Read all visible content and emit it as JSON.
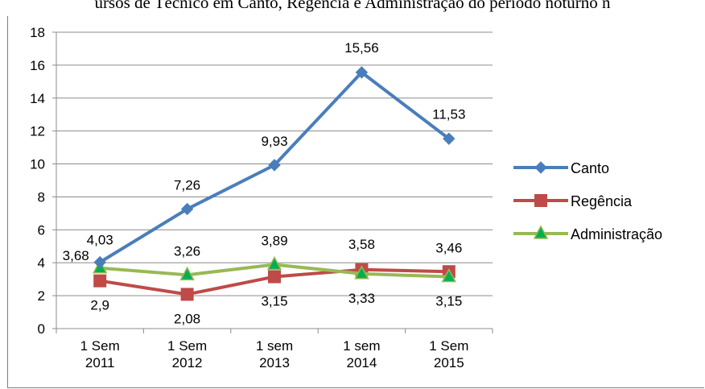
{
  "title": "ursos de Técnico em Canto, Regência e Administração do período noturno n",
  "chart_data": {
    "type": "line",
    "categories": [
      [
        "1 Sem",
        "2011"
      ],
      [
        "1 Sem",
        "2012"
      ],
      [
        "1 sem",
        "2013"
      ],
      [
        "1 sem",
        "2014"
      ],
      [
        "1 Sem",
        "2015"
      ]
    ],
    "ylim": [
      0,
      18
    ],
    "yticks": [
      "0",
      "2",
      "4",
      "6",
      "8",
      "10",
      "12",
      "14",
      "16",
      "18"
    ],
    "grid": true,
    "legend_position": "right",
    "series": [
      {
        "name": "Canto",
        "color": "#4a7ebb",
        "marker": "diamond",
        "values": [
          4.03,
          7.26,
          9.93,
          15.56,
          11.53
        ],
        "labels": [
          "4,03",
          "7,26",
          "9,93",
          "15,56",
          "11,53"
        ]
      },
      {
        "name": "Regência",
        "color": "#be4b48",
        "marker": "square",
        "values": [
          2.9,
          2.08,
          3.15,
          3.58,
          3.46
        ],
        "labels": [
          "2,9",
          "2,08",
          "3,15",
          "3,58",
          "3,46"
        ]
      },
      {
        "name": "Administração",
        "color": "#98b954",
        "marker_fill": "#00b050",
        "marker": "triangle",
        "values": [
          3.68,
          3.26,
          3.89,
          3.33,
          3.15
        ],
        "labels": [
          "3,68",
          "3,26",
          "3,89",
          "3,33",
          "3,15"
        ]
      }
    ]
  }
}
